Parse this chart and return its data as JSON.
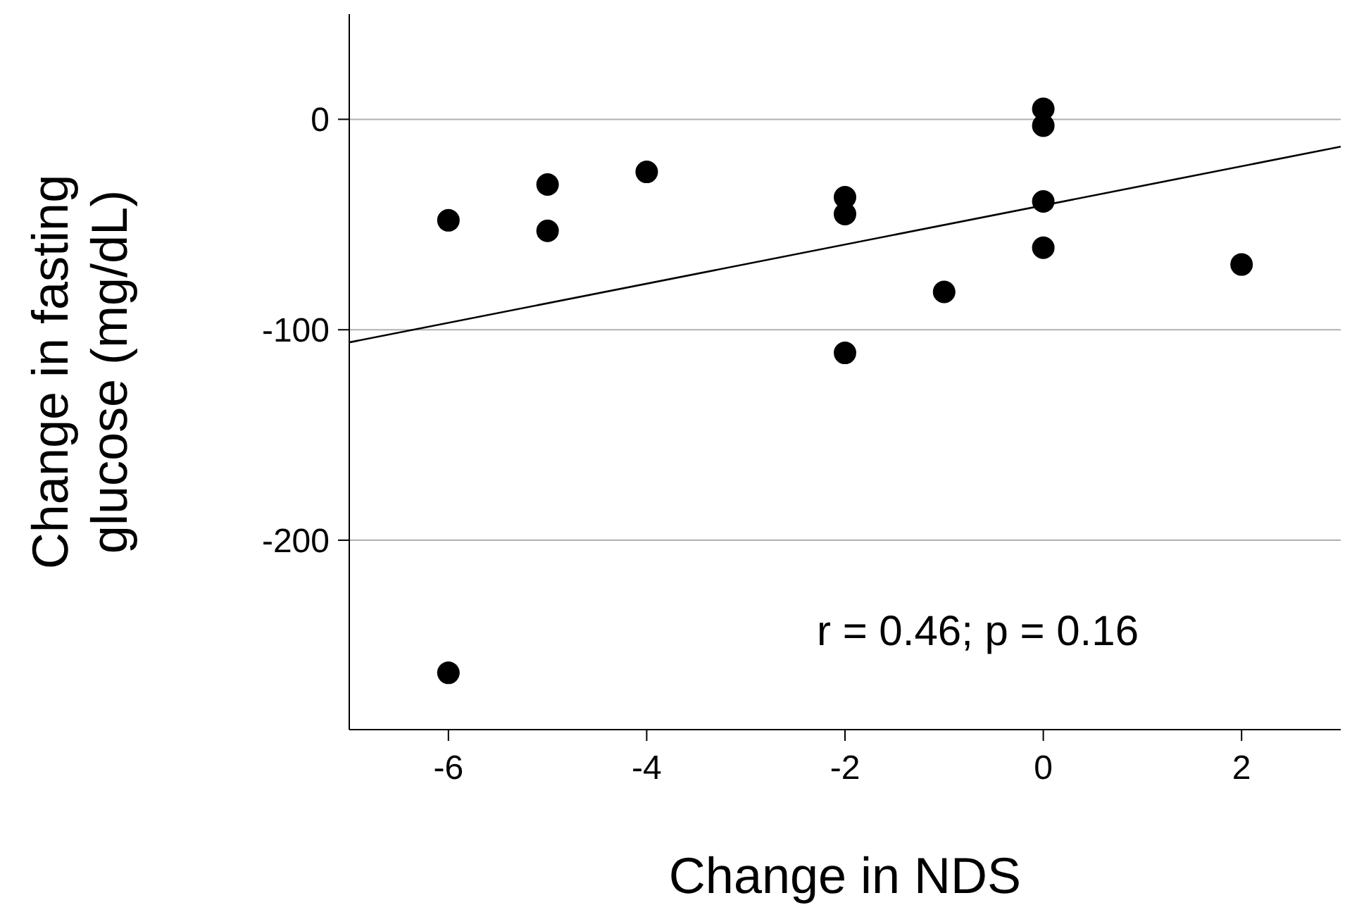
{
  "chart_data": {
    "type": "scatter",
    "xlabel": "Change in NDS",
    "ylabel": "Change in fasting glucose (mg/dL)",
    "x": [
      -6,
      -6,
      -5,
      -5,
      -4,
      -2,
      -2,
      -2,
      -1,
      0,
      0,
      0,
      0,
      2
    ],
    "series": [
      {
        "color": "#000000",
        "marker": "circle",
        "values": [
          -48,
          -263,
          -31,
          -53,
          -25,
          -37,
          -45,
          -111,
          -82,
          5,
          -3,
          -39,
          -61,
          -69
        ]
      },
      {
        "type": "line",
        "color": "#000000",
        "x": [
          -7,
          3
        ],
        "values": [
          -106,
          -13
        ]
      }
    ],
    "xlim": [
      -7,
      3
    ],
    "xticks": [
      -6,
      -4,
      -2,
      0,
      2
    ],
    "ylim": [
      -290,
      50
    ],
    "yticks": [
      -200,
      -100,
      0
    ],
    "grid": "y",
    "annotations": [
      "r = 0.46; p = 0.16"
    ]
  }
}
